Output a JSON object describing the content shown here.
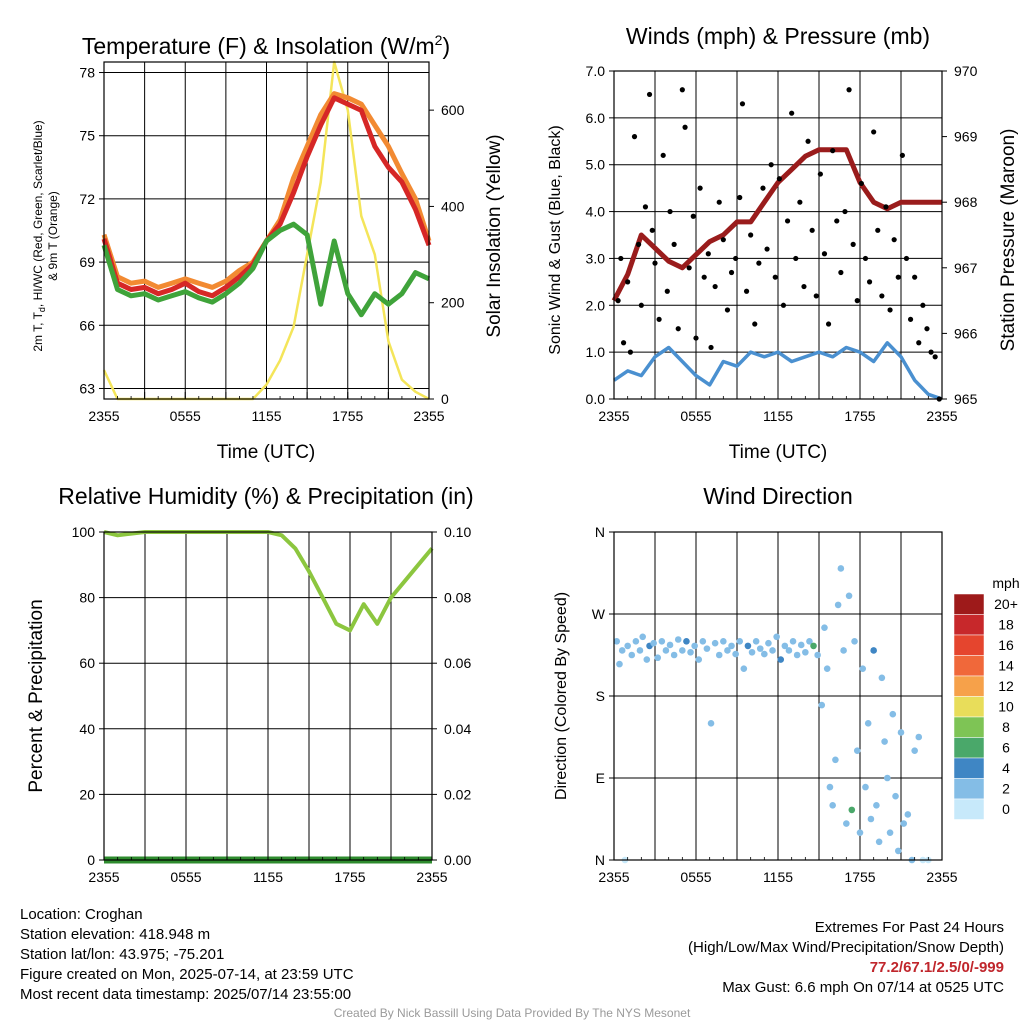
{
  "chart_data": [
    {
      "type": "line",
      "title": "Temperature (F) & Insolation (W/m",
      "title_sup": "2",
      "title_end": ")",
      "xlabel": "Time (UTC)",
      "ylabel": "2m T, T",
      "ylabel_sub": "d",
      "ylabel_rest": ", HI/WC (Red, Green, Scarlet/Blue)",
      "ylabel2": "& 9m T (Orange)",
      "y2label": "Solar Insolation (Yellow)",
      "x_ticks": [
        "2355",
        "0555",
        "1155",
        "1755",
        "2355"
      ],
      "ylim": [
        62.5,
        78.5
      ],
      "y_ticks": [
        "63",
        "66",
        "69",
        "72",
        "75",
        "78"
      ],
      "y_tick_values": [
        63,
        66,
        69,
        72,
        75,
        78
      ],
      "y2lim": [
        0,
        700
      ],
      "y2_ticks": [
        "0",
        "200",
        "400",
        "600"
      ],
      "y2_tick_values": [
        0,
        200,
        400,
        600
      ],
      "x_hours": [
        0,
        1,
        2,
        3,
        4,
        5,
        6,
        7,
        8,
        9,
        10,
        11,
        12,
        13,
        14,
        15,
        16,
        17,
        18,
        19,
        20,
        21,
        22,
        23,
        24
      ],
      "series": [
        {
          "color": "#f4e55a",
          "axis": "y2",
          "values": [
            60,
            0,
            0,
            0,
            0,
            0,
            0,
            0,
            0,
            0,
            0,
            0,
            30,
            80,
            150,
            300,
            450,
            700,
            600,
            380,
            300,
            120,
            40,
            15,
            0
          ]
        },
        {
          "color": "#f28a32",
          "values": [
            70.3,
            68.3,
            68.0,
            68.1,
            67.8,
            68.0,
            68.2,
            68.0,
            67.8,
            68.1,
            68.6,
            69.0,
            70.0,
            71.0,
            73.0,
            74.5,
            76.0,
            77.0,
            76.8,
            76.5,
            75.5,
            74.5,
            73.2,
            72.0,
            70.0
          ]
        },
        {
          "color": "#d62726",
          "values": [
            70.1,
            68.0,
            67.7,
            67.8,
            67.5,
            67.7,
            68.0,
            67.6,
            67.4,
            67.8,
            68.3,
            68.9,
            70.0,
            70.8,
            72.3,
            74.0,
            75.5,
            76.8,
            76.5,
            76.2,
            74.5,
            73.5,
            72.8,
            71.5,
            69.8
          ]
        },
        {
          "color": "#3fa33a",
          "values": [
            69.8,
            67.7,
            67.4,
            67.5,
            67.2,
            67.4,
            67.6,
            67.3,
            67.1,
            67.5,
            68.0,
            68.7,
            70.0,
            70.5,
            70.8,
            70.3,
            67.0,
            70.0,
            67.5,
            66.5,
            67.5,
            67.0,
            67.5,
            68.5,
            68.2
          ]
        }
      ]
    },
    {
      "type": "scatter",
      "title": "Winds (mph) & Pressure (mb)",
      "xlabel": "Time (UTC)",
      "ylabel": "Sonic Wind & Gust (Blue, Black)",
      "y2label": "Station Pressure (Maroon)",
      "x_ticks": [
        "2355",
        "0555",
        "1155",
        "1755",
        "2355"
      ],
      "ylim": [
        0,
        7
      ],
      "y_ticks": [
        "0.0",
        "1.0",
        "2.0",
        "3.0",
        "4.0",
        "5.0",
        "6.0",
        "7.0"
      ],
      "y_tick_values": [
        0,
        1,
        2,
        3,
        4,
        5,
        6,
        7
      ],
      "y2lim": [
        965,
        970
      ],
      "y2_ticks": [
        "965",
        "966",
        "967",
        "968",
        "969",
        "970"
      ],
      "y2_tick_values": [
        965,
        966,
        967,
        968,
        969,
        970
      ],
      "x_hours": [
        0,
        1,
        2,
        3,
        4,
        5,
        6,
        7,
        8,
        9,
        10,
        11,
        12,
        13,
        14,
        15,
        16,
        17,
        18,
        19,
        20,
        21,
        22,
        23,
        24
      ],
      "wind": {
        "color": "#4a90d0",
        "values": [
          0.4,
          0.6,
          0.5,
          0.9,
          1.1,
          0.8,
          0.5,
          0.3,
          0.8,
          0.7,
          1.0,
          0.9,
          1.0,
          0.8,
          0.9,
          1.0,
          0.9,
          1.1,
          1.0,
          0.8,
          1.2,
          0.9,
          0.4,
          0.1,
          0.0
        ]
      },
      "pressure": {
        "color": "#9a1c1c",
        "values": [
          966.5,
          966.9,
          967.5,
          967.3,
          967.1,
          967.0,
          967.2,
          967.4,
          967.5,
          967.7,
          967.7,
          968.0,
          968.3,
          968.5,
          968.7,
          968.8,
          968.8,
          968.8,
          968.3,
          968.0,
          967.9,
          968.0,
          968.0,
          968.0,
          968.0
        ]
      },
      "gust": {
        "color": "#000000",
        "points": [
          [
            0.3,
            2.1
          ],
          [
            0.5,
            3.0
          ],
          [
            0.7,
            1.2
          ],
          [
            1.0,
            2.5
          ],
          [
            1.2,
            1.0
          ],
          [
            1.5,
            5.6
          ],
          [
            1.8,
            3.3
          ],
          [
            2.0,
            2.0
          ],
          [
            2.3,
            4.1
          ],
          [
            2.6,
            6.5
          ],
          [
            2.8,
            3.6
          ],
          [
            3.0,
            2.9
          ],
          [
            3.3,
            1.7
          ],
          [
            3.6,
            5.2
          ],
          [
            3.9,
            2.3
          ],
          [
            4.1,
            4.0
          ],
          [
            4.4,
            3.3
          ],
          [
            4.7,
            1.5
          ],
          [
            5.0,
            6.6
          ],
          [
            5.2,
            5.8
          ],
          [
            5.5,
            2.8
          ],
          [
            5.8,
            3.9
          ],
          [
            6.0,
            1.3
          ],
          [
            6.3,
            4.5
          ],
          [
            6.6,
            2.6
          ],
          [
            6.9,
            3.1
          ],
          [
            7.1,
            1.1
          ],
          [
            7.4,
            2.4
          ],
          [
            7.7,
            4.2
          ],
          [
            8.0,
            3.4
          ],
          [
            8.3,
            1.9
          ],
          [
            8.6,
            2.7
          ],
          [
            8.9,
            3.0
          ],
          [
            9.2,
            4.3
          ],
          [
            9.4,
            6.3
          ],
          [
            9.7,
            2.3
          ],
          [
            10.0,
            3.5
          ],
          [
            10.3,
            1.6
          ],
          [
            10.6,
            2.9
          ],
          [
            10.9,
            4.5
          ],
          [
            11.2,
            3.2
          ],
          [
            11.5,
            5.0
          ],
          [
            11.8,
            2.6
          ],
          [
            12.1,
            4.7
          ],
          [
            12.4,
            2.0
          ],
          [
            12.7,
            3.8
          ],
          [
            13.0,
            6.1
          ],
          [
            13.3,
            3.0
          ],
          [
            13.6,
            4.2
          ],
          [
            13.9,
            2.4
          ],
          [
            14.2,
            5.5
          ],
          [
            14.5,
            3.6
          ],
          [
            14.8,
            2.2
          ],
          [
            15.1,
            4.8
          ],
          [
            15.4,
            3.1
          ],
          [
            15.7,
            1.6
          ],
          [
            16.0,
            5.3
          ],
          [
            16.3,
            3.8
          ],
          [
            16.6,
            2.7
          ],
          [
            16.9,
            4.0
          ],
          [
            17.2,
            6.6
          ],
          [
            17.5,
            3.3
          ],
          [
            17.8,
            2.1
          ],
          [
            18.1,
            4.6
          ],
          [
            18.4,
            3.0
          ],
          [
            18.7,
            2.5
          ],
          [
            19.0,
            5.7
          ],
          [
            19.3,
            3.6
          ],
          [
            19.6,
            2.2
          ],
          [
            19.9,
            4.1
          ],
          [
            20.2,
            1.9
          ],
          [
            20.5,
            3.4
          ],
          [
            20.8,
            2.6
          ],
          [
            21.1,
            5.2
          ],
          [
            21.4,
            3.0
          ],
          [
            21.7,
            1.7
          ],
          [
            22.0,
            2.6
          ],
          [
            22.3,
            1.2
          ],
          [
            22.6,
            2.0
          ],
          [
            22.9,
            1.5
          ],
          [
            23.2,
            1.0
          ],
          [
            23.5,
            0.9
          ],
          [
            23.8,
            0.0
          ]
        ]
      }
    },
    {
      "type": "line",
      "title": "Relative Humidity (%) & Precipitation (in)",
      "ylabel": "Percent & Precipitation",
      "x_ticks": [
        "2355",
        "0555",
        "1155",
        "1755",
        "2355"
      ],
      "ylim": [
        0,
        100
      ],
      "y_ticks": [
        "0",
        "20",
        "40",
        "60",
        "80",
        "100"
      ],
      "y_tick_values": [
        0,
        20,
        40,
        60,
        80,
        100
      ],
      "y2lim": [
        0,
        0.1
      ],
      "y2_ticks": [
        "0.00",
        "0.02",
        "0.04",
        "0.06",
        "0.08",
        "0.10"
      ],
      "y2_tick_values": [
        0,
        0.02,
        0.04,
        0.06,
        0.08,
        0.1
      ],
      "x_hours": [
        0,
        1,
        2,
        3,
        4,
        5,
        6,
        7,
        8,
        9,
        10,
        11,
        12,
        13,
        14,
        15,
        16,
        17,
        18,
        19,
        20,
        21,
        22,
        23,
        24
      ],
      "series": [
        {
          "color": "#8cc63f",
          "values": [
            100,
            99,
            99.5,
            100,
            100,
            100,
            100,
            100,
            100,
            100,
            100,
            100,
            100,
            99,
            95,
            88,
            80,
            72,
            70,
            78,
            72,
            80,
            85,
            90,
            95
          ]
        },
        {
          "color": "#2e8b2e",
          "axis": "y2",
          "values": [
            0,
            0,
            0,
            0,
            0,
            0,
            0,
            0,
            0,
            0,
            0,
            0,
            0,
            0,
            0,
            0,
            0,
            0,
            0,
            0,
            0,
            0,
            0,
            0,
            0
          ]
        }
      ]
    },
    {
      "type": "scatter",
      "title": "Wind Direction",
      "ylabel": "Direction (Colored By Speed)",
      "x_ticks": [
        "2355",
        "0555",
        "1155",
        "1755",
        "2355"
      ],
      "ylim": [
        0,
        360
      ],
      "y_ticks": [
        "N",
        "E",
        "S",
        "W",
        "N"
      ],
      "y_tick_values": [
        0,
        90,
        180,
        270,
        360
      ],
      "colorbar": {
        "title": "mph",
        "labels": [
          "20+",
          "18",
          "16",
          "14",
          "12",
          "10",
          "8",
          "6",
          "4",
          "2",
          "0"
        ],
        "colors": [
          "#9e1a1a",
          "#c7282b",
          "#e5452e",
          "#f0683a",
          "#f6a14a",
          "#e8dd5a",
          "#7ec455",
          "#4aa86a",
          "#3f86c4",
          "#84bde6",
          "#c7e9fa"
        ]
      },
      "points": [
        [
          0.2,
          240,
          1
        ],
        [
          0.4,
          215,
          1
        ],
        [
          0.6,
          230,
          1
        ],
        [
          0.8,
          0,
          0
        ],
        [
          1.0,
          235,
          1
        ],
        [
          1.3,
          225,
          1
        ],
        [
          1.6,
          240,
          1
        ],
        [
          1.9,
          230,
          1
        ],
        [
          2.1,
          245,
          1
        ],
        [
          2.4,
          220,
          1
        ],
        [
          2.6,
          235,
          2
        ],
        [
          2.9,
          238,
          1
        ],
        [
          3.2,
          222,
          1
        ],
        [
          3.5,
          240,
          1
        ],
        [
          3.8,
          230,
          1
        ],
        [
          4.1,
          236,
          1
        ],
        [
          4.4,
          225,
          1
        ],
        [
          4.7,
          242,
          1
        ],
        [
          5.0,
          230,
          1
        ],
        [
          5.3,
          240,
          2
        ],
        [
          5.6,
          228,
          1
        ],
        [
          5.9,
          235,
          1
        ],
        [
          6.2,
          220,
          1
        ],
        [
          6.5,
          240,
          1
        ],
        [
          6.8,
          232,
          1
        ],
        [
          7.1,
          150,
          1
        ],
        [
          7.4,
          238,
          1
        ],
        [
          7.7,
          225,
          1
        ],
        [
          8.0,
          240,
          1
        ],
        [
          8.3,
          230,
          1
        ],
        [
          8.6,
          235,
          1
        ],
        [
          8.9,
          226,
          1
        ],
        [
          9.2,
          240,
          1
        ],
        [
          9.5,
          210,
          1
        ],
        [
          9.8,
          235,
          2
        ],
        [
          10.1,
          228,
          1
        ],
        [
          10.4,
          240,
          1
        ],
        [
          10.7,
          232,
          1
        ],
        [
          11.0,
          226,
          1
        ],
        [
          11.3,
          238,
          1
        ],
        [
          11.6,
          230,
          1
        ],
        [
          11.9,
          245,
          1
        ],
        [
          12.2,
          220,
          2
        ],
        [
          12.5,
          235,
          1
        ],
        [
          12.8,
          230,
          1
        ],
        [
          13.1,
          240,
          1
        ],
        [
          13.4,
          225,
          1
        ],
        [
          13.7,
          236,
          1
        ],
        [
          14.0,
          228,
          1
        ],
        [
          14.3,
          240,
          1
        ],
        [
          14.6,
          235,
          3
        ],
        [
          14.9,
          225,
          1
        ],
        [
          15.2,
          170,
          1
        ],
        [
          15.4,
          255,
          1
        ],
        [
          15.6,
          210,
          1
        ],
        [
          15.8,
          80,
          1
        ],
        [
          16.0,
          60,
          1
        ],
        [
          16.2,
          110,
          1
        ],
        [
          16.4,
          280,
          1
        ],
        [
          16.6,
          320,
          1
        ],
        [
          16.8,
          230,
          1
        ],
        [
          17.0,
          40,
          1
        ],
        [
          17.2,
          290,
          1
        ],
        [
          17.4,
          55,
          3
        ],
        [
          17.6,
          240,
          1
        ],
        [
          17.8,
          120,
          1
        ],
        [
          18.0,
          30,
          1
        ],
        [
          18.2,
          210,
          1
        ],
        [
          18.4,
          80,
          1
        ],
        [
          18.6,
          150,
          1
        ],
        [
          18.8,
          45,
          1
        ],
        [
          19.0,
          230,
          2
        ],
        [
          19.2,
          60,
          1
        ],
        [
          19.4,
          20,
          1
        ],
        [
          19.6,
          200,
          1
        ],
        [
          19.8,
          130,
          1
        ],
        [
          20.0,
          90,
          1
        ],
        [
          20.2,
          30,
          1
        ],
        [
          20.4,
          160,
          1
        ],
        [
          20.6,
          70,
          1
        ],
        [
          20.8,
          10,
          1
        ],
        [
          21.0,
          140,
          1
        ],
        [
          21.2,
          40,
          1
        ],
        [
          21.5,
          50,
          1
        ],
        [
          21.8,
          0,
          1
        ],
        [
          22.0,
          120,
          1
        ],
        [
          22.3,
          135,
          1
        ],
        [
          22.6,
          0,
          0
        ],
        [
          23.0,
          0,
          0
        ]
      ]
    }
  ],
  "info": {
    "location": "Location: Croghan",
    "elevation": "Station elevation: 418.948 m",
    "latlon": "Station lat/lon: 43.975; -75.201",
    "created": "Figure created on Mon, 2025-07-14, at 23:59 UTC",
    "recent": "Most recent data timestamp: 2025/07/14 23:55:00"
  },
  "extremes": {
    "title": "Extremes For Past 24 Hours",
    "subtitle": "(High/Low/Max Wind/Precipitation/Snow Depth)",
    "values": "77.2/67.1/2.5/0/-999",
    "gust": "Max Gust: 6.6 mph On 07/14 at 0525 UTC"
  },
  "credit": "Created By Nick Bassill Using Data Provided By The NYS Mesonet"
}
